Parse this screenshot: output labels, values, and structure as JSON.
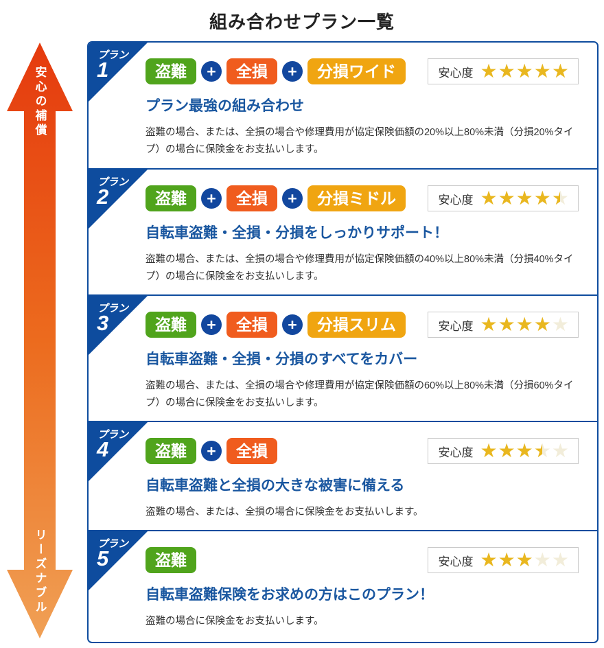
{
  "page": {
    "title": "組み合わせプラン一覧"
  },
  "axis": {
    "top_label": "安心の補償",
    "bottom_label": "リーズナブル",
    "gradient_top_color": "#e53a0e",
    "gradient_mid_color": "#ec6b1e",
    "gradient_bottom_color": "#f0a055"
  },
  "labels": {
    "plan_prefix": "プラン",
    "rating_label": "安心度",
    "plus_symbol": "+",
    "star_glyph": "★"
  },
  "colors": {
    "main_blue": "#0e4c9e",
    "headline_blue": "#1a57a0",
    "badge_green": "#50a41c",
    "badge_orange": "#f05c1e",
    "badge_yellow": "#f0a511",
    "star_gold": "#e9b71f",
    "star_empty": "#f2edda"
  },
  "plans": [
    {
      "number": "1",
      "badges": [
        {
          "label": "盗難",
          "type": "badge_green"
        },
        {
          "label": "全損",
          "type": "badge_orange"
        },
        {
          "label": "分損ワイド",
          "type": "badge_yellow"
        }
      ],
      "rating": 5,
      "rating_max": 5,
      "headline": "プラン最強の組み合わせ",
      "description": "盗難の場合、または、全損の場合や修理費用が協定保険価額の20%以上80%未満（分損20%タイプ）の場合に保険金をお支払いします。"
    },
    {
      "number": "2",
      "badges": [
        {
          "label": "盗難",
          "type": "badge_green"
        },
        {
          "label": "全損",
          "type": "badge_orange"
        },
        {
          "label": "分損ミドル",
          "type": "badge_yellow"
        }
      ],
      "rating": 4.5,
      "rating_max": 5,
      "headline": "自転車盗難・全損・分損をしっかりサポート！",
      "description": "盗難の場合、または、全損の場合や修理費用が協定保険価額の40%以上80%未満（分損40%タイプ）の場合に保険金をお支払いします。"
    },
    {
      "number": "3",
      "badges": [
        {
          "label": "盗難",
          "type": "badge_green"
        },
        {
          "label": "全損",
          "type": "badge_orange"
        },
        {
          "label": "分損スリム",
          "type": "badge_yellow"
        }
      ],
      "rating": 4,
      "rating_max": 5,
      "headline": "自転車盗難・全損・分損のすべてをカバー",
      "description": "盗難の場合、または、全損の場合や修理費用が協定保険価額の60%以上80%未満（分損60%タイプ）の場合に保険金をお支払いします。"
    },
    {
      "number": "4",
      "badges": [
        {
          "label": "盗難",
          "type": "badge_green"
        },
        {
          "label": "全損",
          "type": "badge_orange"
        }
      ],
      "rating": 3.5,
      "rating_max": 5,
      "headline": "自転車盗難と全損の大きな被害に備える",
      "description": "盗難の場合、または、全損の場合に保険金をお支払いします。"
    },
    {
      "number": "5",
      "badges": [
        {
          "label": "盗難",
          "type": "badge_green"
        }
      ],
      "rating": 3,
      "rating_max": 5,
      "headline": "自転車盗難保険をお求めの方はこのプラン！",
      "description": "盗難の場合に保険金をお支払いします。"
    }
  ]
}
